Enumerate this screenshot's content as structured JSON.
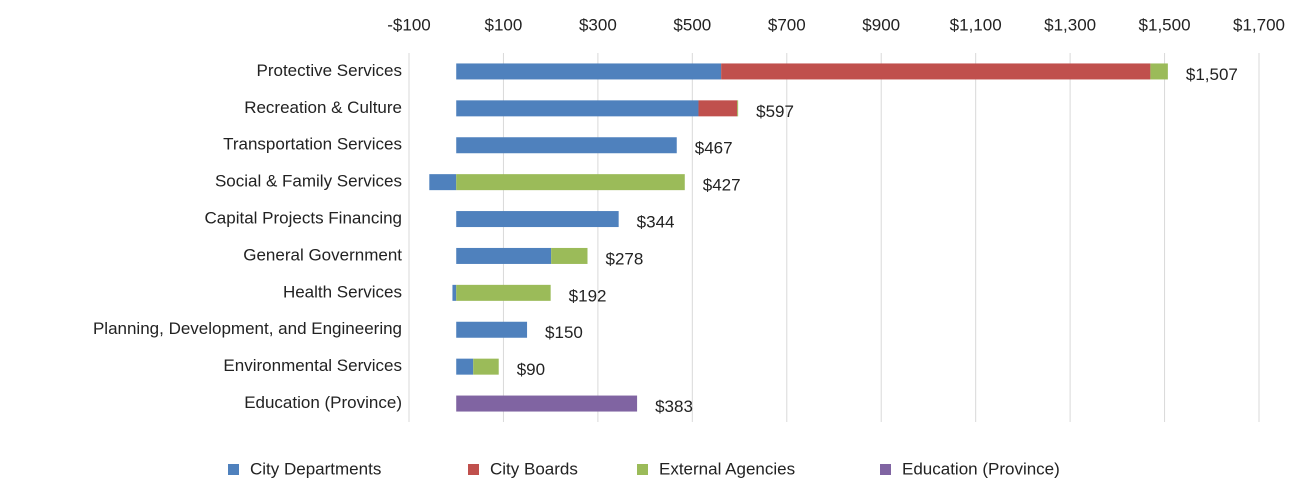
{
  "chart_data": {
    "type": "stacked-bar-horizontal",
    "categories": [
      "Protective Services",
      "Recreation & Culture",
      "Transportation Services",
      "Social & Family Services",
      "Capital Projects Financing",
      "General Government",
      "Health Services",
      "Planning, Development, and Engineering",
      "Environmental Services",
      "Education (Province)"
    ],
    "series": [
      {
        "name": "City Departments",
        "color": "#4f81bd",
        "values": [
          561,
          513,
          467,
          -57,
          344,
          201,
          -8,
          150,
          36,
          null
        ]
      },
      {
        "name": "City Boards",
        "color": "#c0504d",
        "values": [
          909,
          82,
          null,
          null,
          null,
          null,
          null,
          null,
          null,
          null
        ]
      },
      {
        "name": "External Agencies",
        "color": "#9bbb59",
        "values": [
          37,
          2,
          null,
          484,
          null,
          77,
          200,
          null,
          54,
          null
        ]
      },
      {
        "name": "Education (Province)",
        "color": "#8064a2",
        "values": [
          null,
          null,
          null,
          null,
          null,
          null,
          null,
          null,
          null,
          383
        ]
      }
    ],
    "totals": [
      1507,
      597,
      467,
      427,
      344,
      278,
      192,
      150,
      90,
      383
    ],
    "total_labels": [
      "$1,507",
      "$597",
      "$467",
      "$427",
      "$344",
      "$278",
      "$192",
      "$150",
      "$90",
      "$383"
    ],
    "xlim": [
      -100,
      1700
    ],
    "xticks": [
      {
        "value": -100,
        "label": "-$100"
      },
      {
        "value": 100,
        "label": "$100"
      },
      {
        "value": 300,
        "label": "$300"
      },
      {
        "value": 500,
        "label": "$500"
      },
      {
        "value": 700,
        "label": "$700"
      },
      {
        "value": 900,
        "label": "$900"
      },
      {
        "value": 1100,
        "label": "$1,100"
      },
      {
        "value": 1300,
        "label": "$1,300"
      },
      {
        "value": 1500,
        "label": "$1,500"
      },
      {
        "value": 1700,
        "label": "$1,700"
      }
    ],
    "grid": true,
    "legend": "bottom"
  }
}
